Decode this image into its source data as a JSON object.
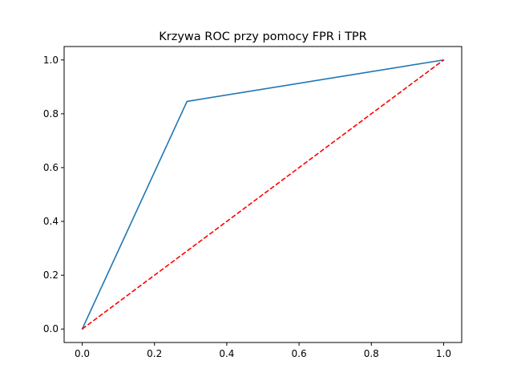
{
  "chart_data": {
    "type": "line",
    "title": "Krzywa ROC przy pomocy FPR i TPR",
    "xlabel": "",
    "ylabel": "",
    "xlim": [
      -0.05,
      1.05
    ],
    "ylim": [
      -0.05,
      1.05
    ],
    "xticks": [
      0.0,
      0.2,
      0.4,
      0.6,
      0.8,
      1.0
    ],
    "xtick_labels": [
      "0.0",
      "0.2",
      "0.4",
      "0.6",
      "0.8",
      "1.0"
    ],
    "yticks": [
      0.0,
      0.2,
      0.4,
      0.6,
      0.8,
      1.0
    ],
    "ytick_labels": [
      "0.0",
      "0.2",
      "0.4",
      "0.6",
      "0.8",
      "1.0"
    ],
    "grid": false,
    "series": [
      {
        "x": [
          0.0,
          0.29,
          1.0
        ],
        "y": [
          0.0,
          0.846,
          1.0
        ],
        "color": "#1f77b4",
        "line_style": "solid"
      },
      {
        "x": [
          0.0,
          1.0
        ],
        "y": [
          0.0,
          1.0
        ],
        "color": "#ff0000",
        "line_style": "dashed"
      }
    ]
  }
}
